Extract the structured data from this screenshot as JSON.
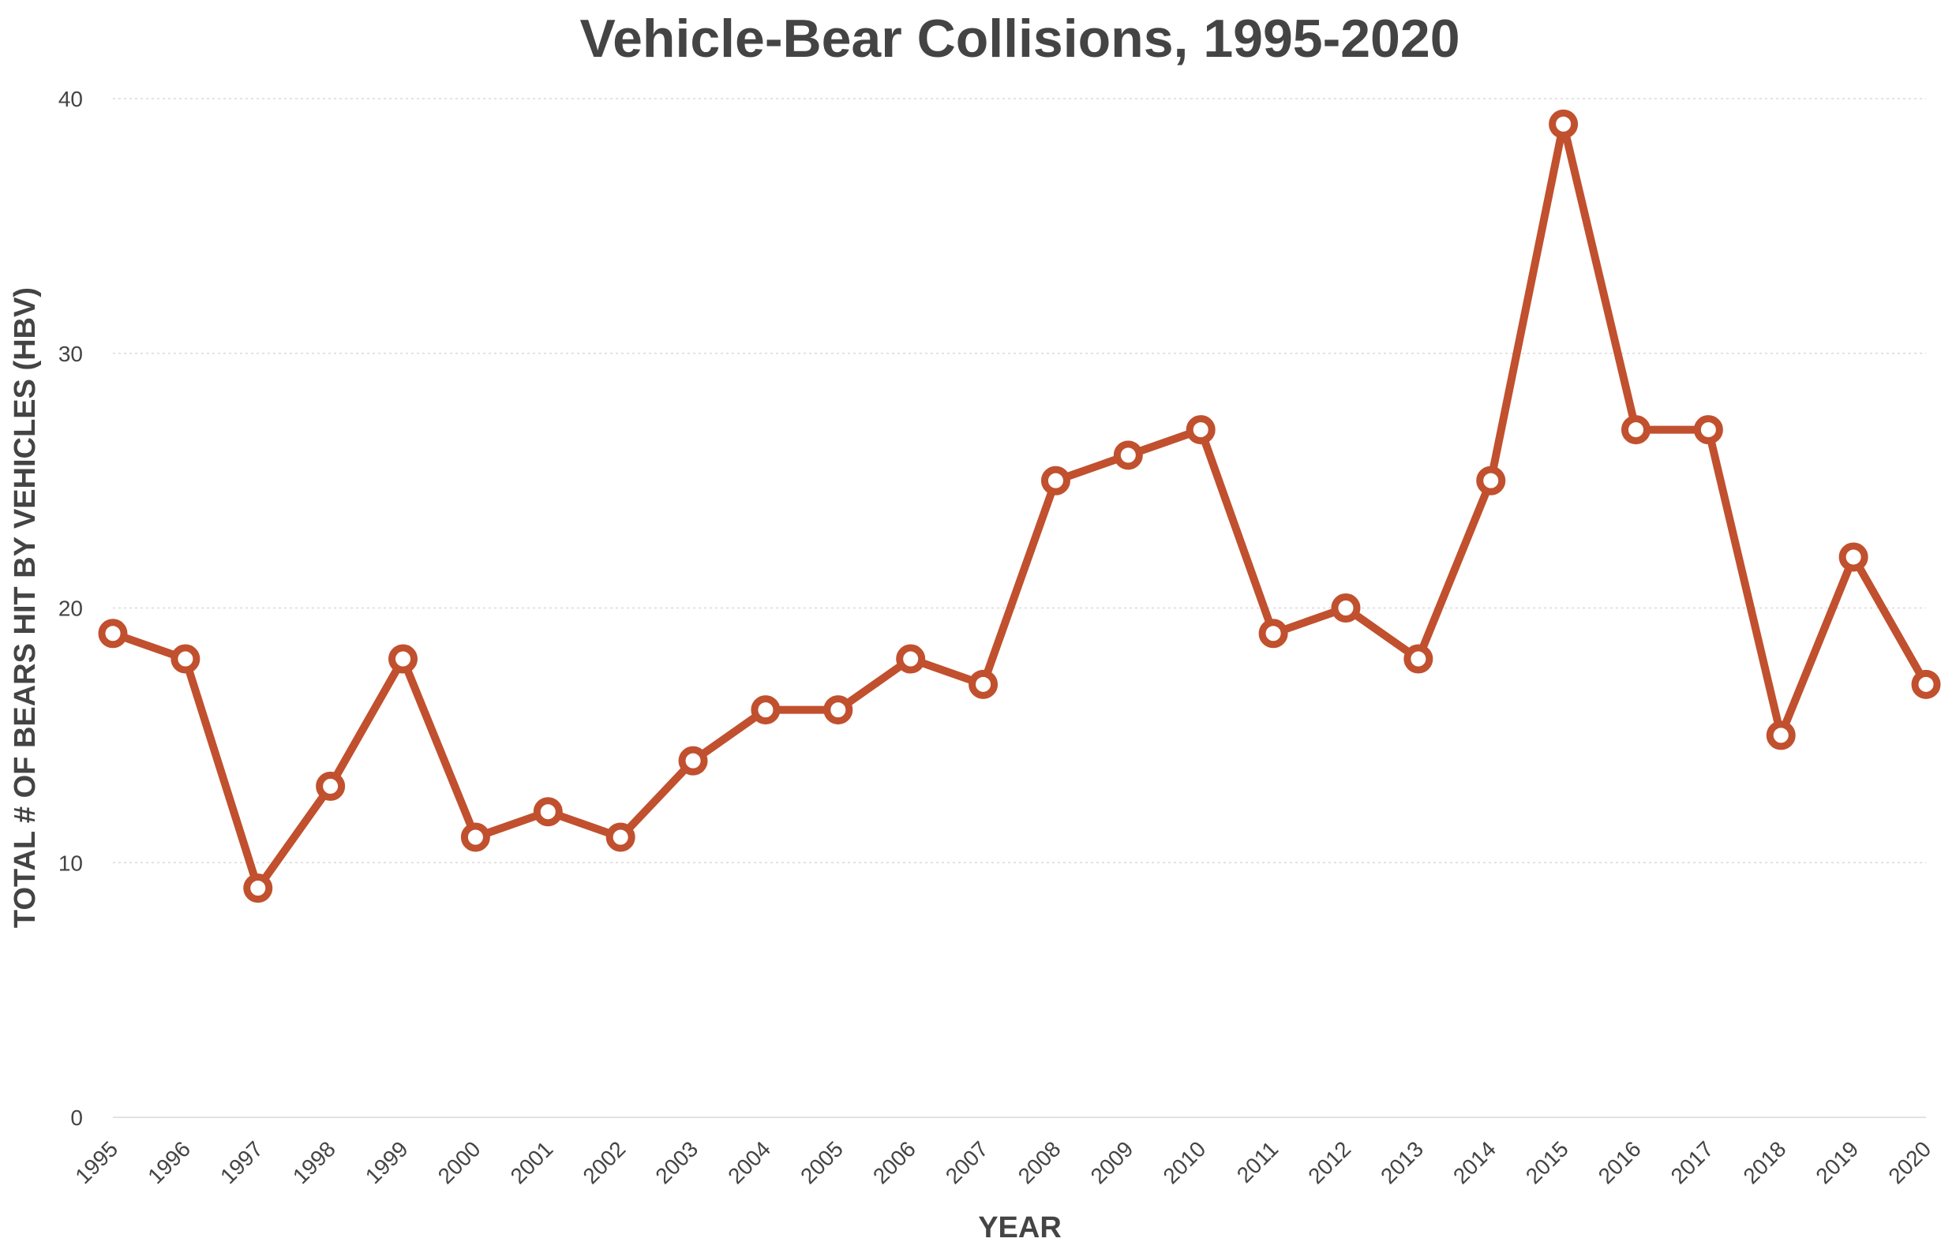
{
  "chart_data": {
    "type": "line",
    "title": "Vehicle-Bear Collisions, 1995-2020",
    "xlabel": "YEAR",
    "ylabel": "TOTAL # OF BEARS HIT BY VEHICLES  (HBV)",
    "categories": [
      "1995",
      "1996",
      "1997",
      "1998",
      "1999",
      "2000",
      "2001",
      "2002",
      "2003",
      "2004",
      "2005",
      "2006",
      "2007",
      "2008",
      "2009",
      "2010",
      "2011",
      "2012",
      "2013",
      "2014",
      "2015",
      "2016",
      "2017",
      "2018",
      "2019",
      "2020"
    ],
    "series": [
      {
        "values": [
          19,
          18,
          9,
          13,
          18,
          11,
          12,
          11,
          14,
          16,
          16,
          18,
          17,
          25,
          26,
          27,
          19,
          20,
          18,
          25,
          39,
          27,
          27,
          15,
          22,
          17
        ]
      }
    ],
    "ylim": [
      0,
      40
    ],
    "yticks": [
      0,
      10,
      20,
      30,
      40
    ],
    "grid": true,
    "legend": "none",
    "colors": {
      "series": "#c1502e",
      "text": "#444444",
      "grid": "#d9d9d9"
    }
  }
}
